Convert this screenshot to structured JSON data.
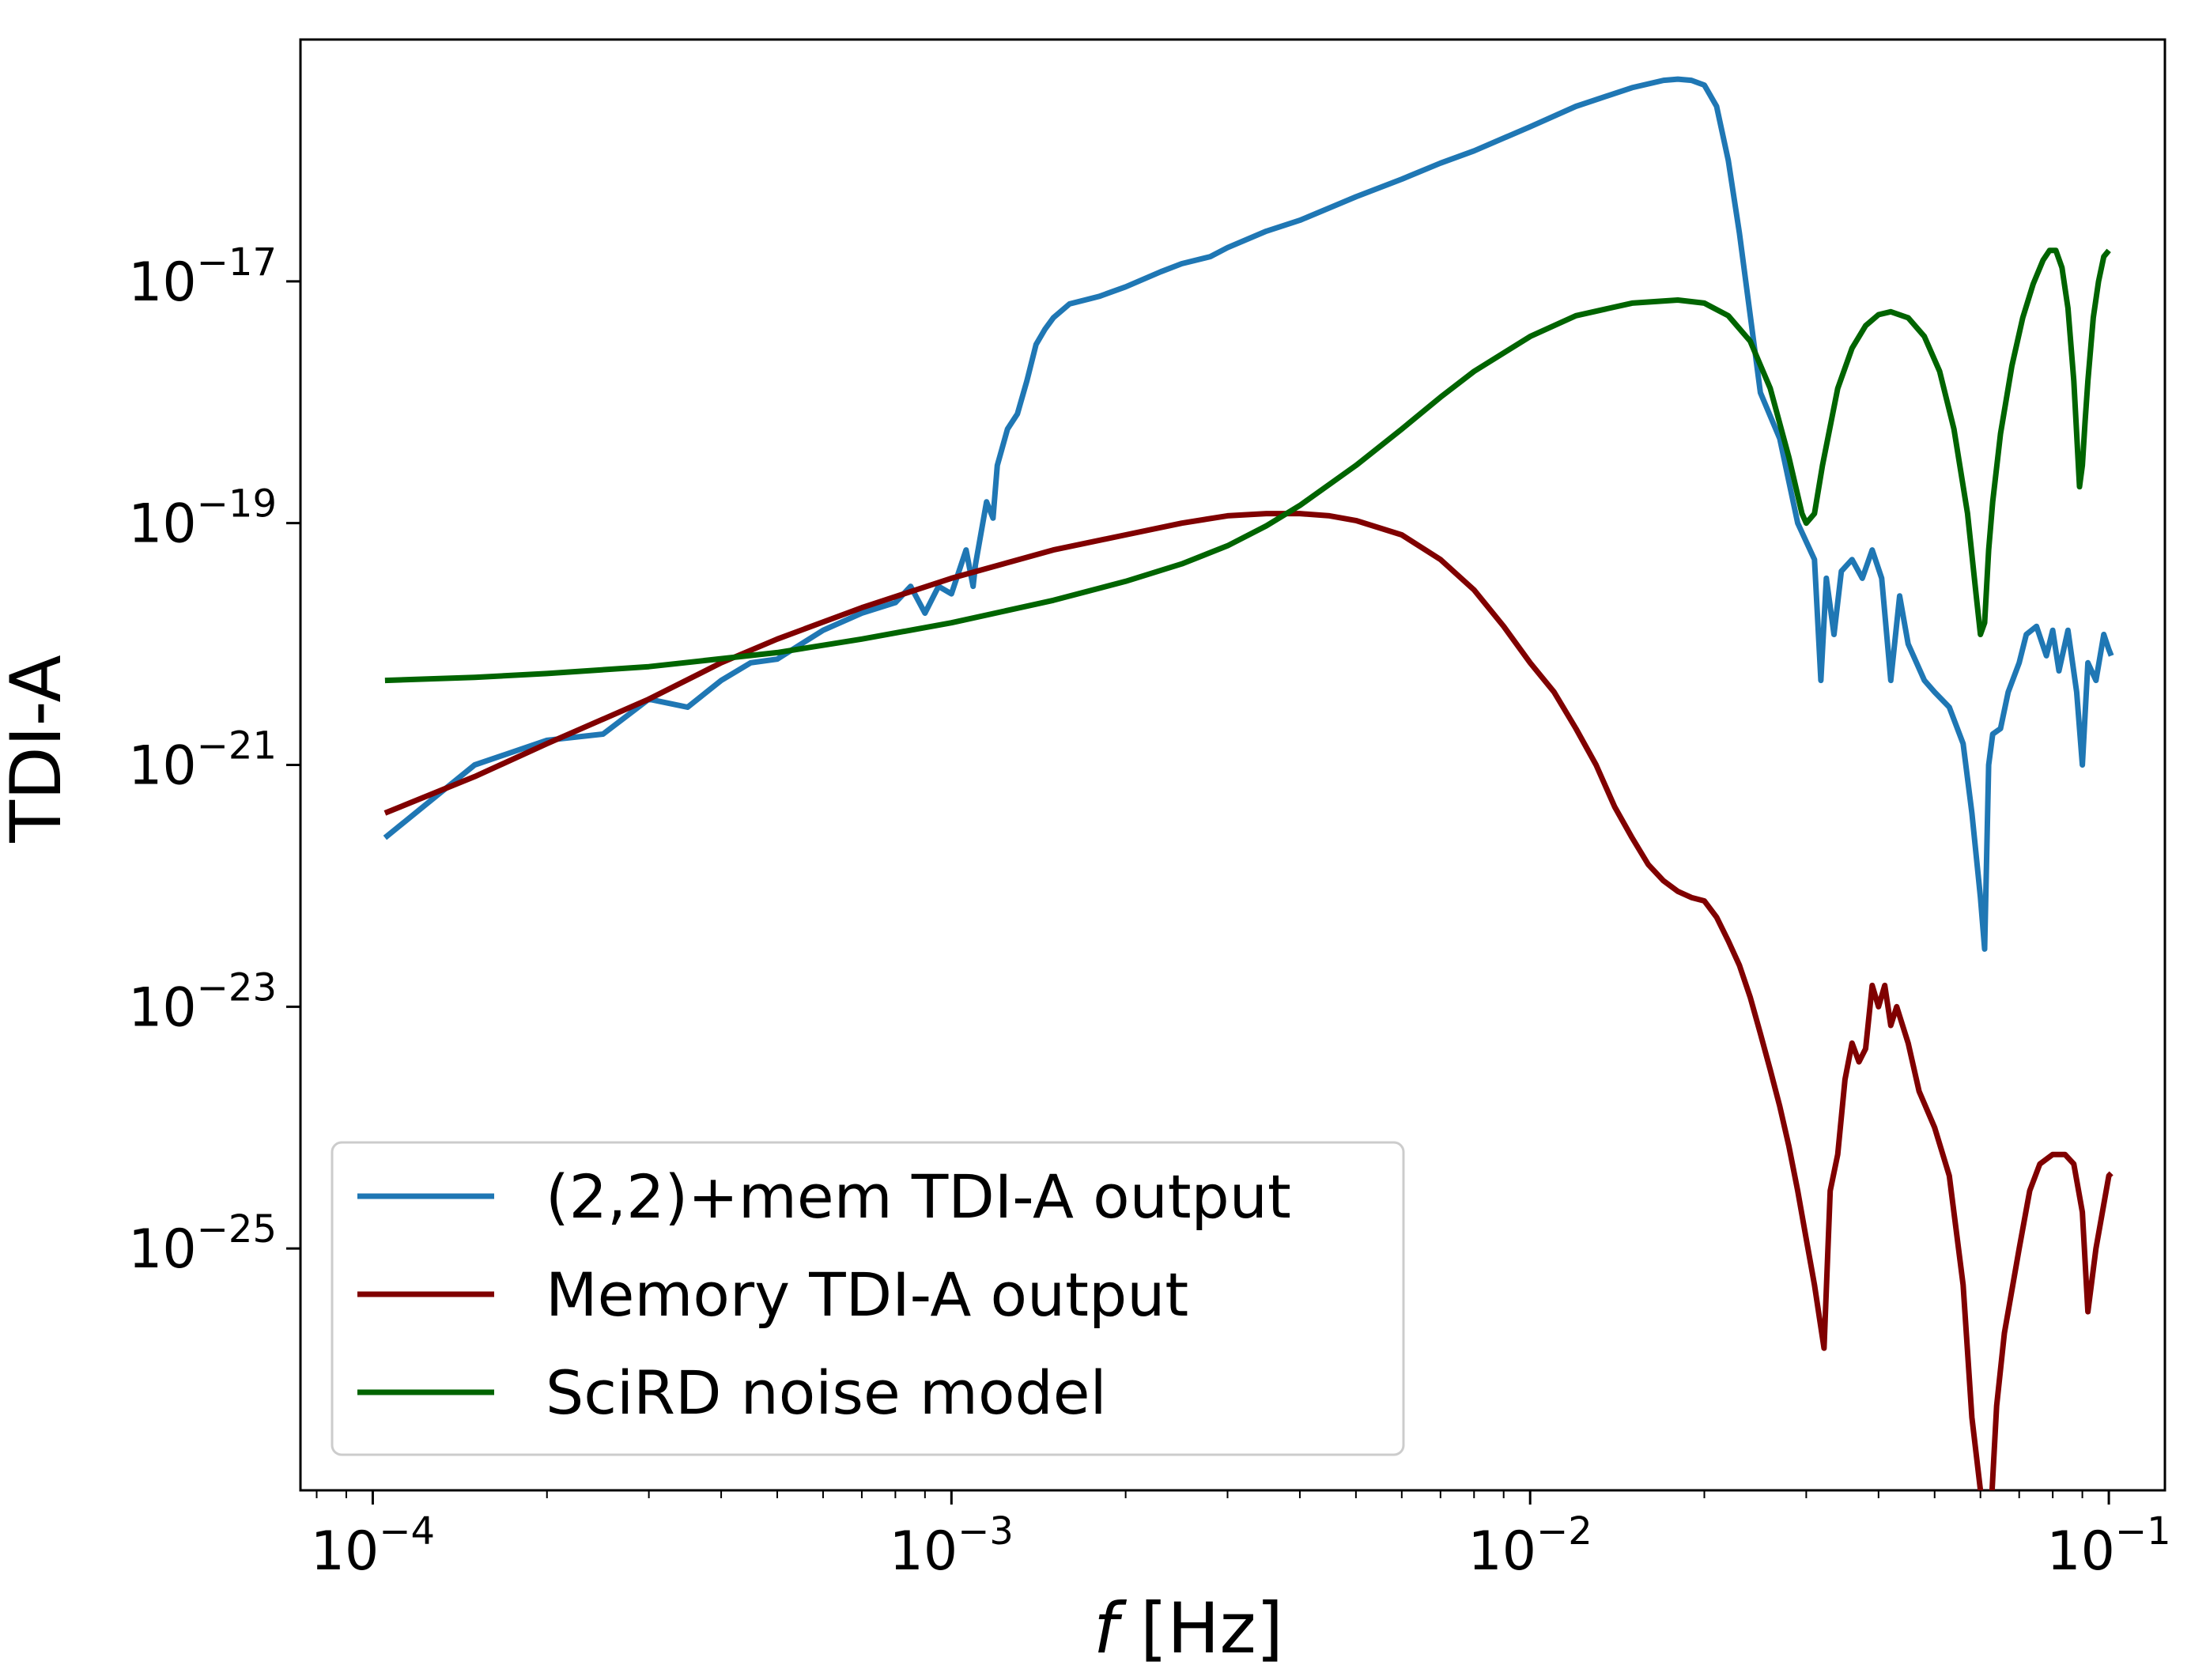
{
  "chart_data": {
    "type": "line",
    "title": "",
    "xlabel_italic": "f",
    "xlabel_rest": " [Hz]",
    "ylabel": "TDI-A",
    "x_scale": "log",
    "y_scale": "log",
    "xlim": [
      7.5e-05,
      0.125
    ],
    "ylim": [
      1e-27,
      1e-15
    ],
    "grid": false,
    "legend_placement": "lower-left",
    "x_ticks": [
      {
        "value": 0.0001,
        "base": "10",
        "exp": "−4"
      },
      {
        "value": 0.001,
        "base": "10",
        "exp": "−3"
      },
      {
        "value": 0.01,
        "base": "10",
        "exp": "−2"
      },
      {
        "value": 0.1,
        "base": "10",
        "exp": "−1"
      }
    ],
    "y_ticks": [
      {
        "value": 1e-17,
        "base": "10",
        "exp": "−17"
      },
      {
        "value": 1e-19,
        "base": "10",
        "exp": "−19"
      },
      {
        "value": 1e-21,
        "base": "10",
        "exp": "−21"
      },
      {
        "value": 1e-23,
        "base": "10",
        "exp": "−23"
      },
      {
        "value": 1e-25,
        "base": "10",
        "exp": "−25"
      }
    ],
    "series": [
      {
        "name": "(2,2)+mem TDI-A output",
        "color": "#1f77b4",
        "x": [
          0.000105,
          0.00015,
          0.0002,
          0.00025,
          0.0003,
          0.00035,
          0.0004,
          0.00045,
          0.0005,
          0.00055,
          0.0006,
          0.0007,
          0.0008,
          0.00085,
          0.0009,
          0.00095,
          0.001,
          0.00106,
          0.00109,
          0.0011,
          0.00115,
          0.00118,
          0.0012,
          0.00125,
          0.0013,
          0.00135,
          0.0014,
          0.00145,
          0.0015,
          0.0016,
          0.0017,
          0.0018,
          0.002,
          0.0023,
          0.0025,
          0.0028,
          0.003,
          0.0035,
          0.004,
          0.005,
          0.006,
          0.007,
          0.008,
          0.01,
          0.012,
          0.015,
          0.017,
          0.018,
          0.019,
          0.02,
          0.021,
          0.022,
          0.023,
          0.025,
          0.027,
          0.029,
          0.031,
          0.0318,
          0.0325,
          0.0335,
          0.0345,
          0.036,
          0.0375,
          0.039,
          0.0405,
          0.042,
          0.0435,
          0.045,
          0.048,
          0.05,
          0.053,
          0.056,
          0.058,
          0.06,
          0.061,
          0.062,
          0.063,
          0.065,
          0.067,
          0.07,
          0.072,
          0.075,
          0.078,
          0.08,
          0.082,
          0.085,
          0.088,
          0.09,
          0.092,
          0.095,
          0.098,
          0.1,
          0.101
        ],
        "y": [
          2.5e-22,
          1e-21,
          1.6e-21,
          1.8e-21,
          3.5e-21,
          3e-21,
          5e-21,
          7e-21,
          7.5e-21,
          1e-20,
          1.3e-20,
          1.8e-20,
          2.2e-20,
          3e-20,
          1.8e-20,
          3e-20,
          2.6e-20,
          6e-20,
          3e-20,
          4.5e-20,
          1.5e-19,
          1.1e-19,
          3e-19,
          6e-19,
          8e-19,
          1.5e-18,
          3e-18,
          4e-18,
          5e-18,
          6.5e-18,
          7e-18,
          7.5e-18,
          9e-18,
          1.2e-17,
          1.4e-17,
          1.6e-17,
          1.9e-17,
          2.6e-17,
          3.2e-17,
          5e-17,
          7e-17,
          9.5e-17,
          1.2e-16,
          1.9e-16,
          2.8e-16,
          4e-16,
          4.6e-16,
          4.7e-16,
          4.6e-16,
          4.2e-16,
          2.8e-16,
          1e-16,
          2.5e-17,
          1.2e-18,
          5e-19,
          1e-19,
          5e-20,
          5e-21,
          3.5e-20,
          1.2e-20,
          4e-20,
          5e-20,
          3.5e-20,
          6e-20,
          3.5e-20,
          5e-21,
          2.5e-20,
          1e-20,
          5e-21,
          4e-21,
          3e-21,
          1.5e-21,
          4e-22,
          8e-23,
          3e-23,
          1e-21,
          1.8e-21,
          2e-21,
          4e-21,
          7e-21,
          1.2e-20,
          1.4e-20,
          8e-21,
          1.3e-20,
          6e-21,
          1.3e-20,
          4e-21,
          1e-21,
          7e-21,
          5e-21,
          1.2e-20,
          9e-21,
          8e-21
        ]
      },
      {
        "name": "Memory TDI-A output",
        "color": "#800000",
        "x": [
          0.000105,
          0.00015,
          0.0002,
          0.0003,
          0.0004,
          0.0005,
          0.0007,
          0.001,
          0.0015,
          0.002,
          0.0025,
          0.003,
          0.0035,
          0.004,
          0.0045,
          0.005,
          0.006,
          0.007,
          0.008,
          0.009,
          0.01,
          0.011,
          0.012,
          0.013,
          0.014,
          0.015,
          0.016,
          0.017,
          0.018,
          0.019,
          0.02,
          0.021,
          0.022,
          0.023,
          0.024,
          0.025,
          0.026,
          0.027,
          0.028,
          0.029,
          0.03,
          0.031,
          0.0315,
          0.0322,
          0.033,
          0.034,
          0.035,
          0.036,
          0.037,
          0.038,
          0.039,
          0.04,
          0.041,
          0.042,
          0.043,
          0.045,
          0.047,
          0.05,
          0.053,
          0.056,
          0.058,
          0.06,
          0.0612,
          0.062,
          0.064,
          0.066,
          0.07,
          0.073,
          0.076,
          0.08,
          0.084,
          0.087,
          0.09,
          0.092,
          0.095,
          0.1,
          0.101
        ],
        "y": [
          4e-22,
          8e-22,
          1.5e-21,
          3.5e-21,
          7e-21,
          1.1e-20,
          2e-20,
          3.5e-20,
          6e-20,
          8e-20,
          1e-19,
          1.15e-19,
          1.2e-19,
          1.2e-19,
          1.15e-19,
          1.05e-19,
          8e-20,
          5e-20,
          2.8e-20,
          1.4e-20,
          7e-21,
          4e-21,
          2e-21,
          1e-21,
          4.5e-22,
          2.5e-22,
          1.5e-22,
          1.1e-22,
          9e-23,
          8e-23,
          7.5e-23,
          5.5e-23,
          3.5e-23,
          2.2e-23,
          1.2e-23,
          6e-24,
          3e-24,
          1.5e-24,
          7e-25,
          3e-25,
          1.2e-25,
          5e-26,
          3e-26,
          1.5e-26,
          3e-25,
          6e-25,
          2.5e-24,
          5e-24,
          3.5e-24,
          4.5e-24,
          1.5e-23,
          1e-23,
          1.5e-23,
          7e-24,
          1e-23,
          5e-24,
          2e-24,
          1e-24,
          4e-25,
          5e-26,
          4e-27,
          1e-27,
          2e-28,
          3e-28,
          5e-27,
          2e-26,
          1e-25,
          3e-25,
          5e-25,
          6e-25,
          6e-25,
          5e-25,
          2e-25,
          3e-26,
          1e-25,
          4e-25,
          4.2e-25
        ]
      },
      {
        "name": "SciRD noise model",
        "color": "#006400",
        "x": [
          0.000105,
          0.00015,
          0.0002,
          0.0003,
          0.0005,
          0.0007,
          0.001,
          0.0015,
          0.002,
          0.0025,
          0.003,
          0.0035,
          0.004,
          0.005,
          0.006,
          0.007,
          0.008,
          0.01,
          0.012,
          0.015,
          0.018,
          0.02,
          0.022,
          0.024,
          0.026,
          0.028,
          0.0295,
          0.03,
          0.031,
          0.032,
          0.034,
          0.036,
          0.038,
          0.04,
          0.042,
          0.045,
          0.048,
          0.051,
          0.054,
          0.057,
          0.059,
          0.06,
          0.061,
          0.062,
          0.063,
          0.065,
          0.068,
          0.071,
          0.074,
          0.077,
          0.079,
          0.081,
          0.083,
          0.085,
          0.087,
          0.089,
          0.09,
          0.091,
          0.092,
          0.094,
          0.096,
          0.098,
          0.1
        ],
        "y": [
          5e-21,
          5.3e-21,
          5.7e-21,
          6.5e-21,
          8.5e-21,
          1.1e-20,
          1.5e-20,
          2.3e-20,
          3.3e-20,
          4.6e-20,
          6.5e-20,
          9.5e-20,
          1.4e-19,
          3e-19,
          6e-19,
          1.1e-18,
          1.8e-18,
          3.5e-18,
          5.2e-18,
          6.6e-18,
          7e-18,
          6.6e-18,
          5.2e-18,
          3.2e-18,
          1.3e-18,
          3.5e-19,
          1.2e-19,
          1e-19,
          1.2e-19,
          3e-19,
          1.3e-18,
          2.8e-18,
          4.3e-18,
          5.3e-18,
          5.6e-18,
          5e-18,
          3.5e-18,
          1.8e-18,
          6e-19,
          1.2e-19,
          2.5e-20,
          1.2e-20,
          1.5e-20,
          6e-20,
          1.5e-19,
          5.5e-19,
          2e-18,
          5e-18,
          9.5e-18,
          1.5e-17,
          1.8e-17,
          1.8e-17,
          1.3e-17,
          6e-18,
          1.5e-18,
          2e-19,
          3e-19,
          7e-19,
          1.5e-18,
          5e-18,
          1e-17,
          1.6e-17,
          1.8e-17
        ]
      }
    ]
  }
}
